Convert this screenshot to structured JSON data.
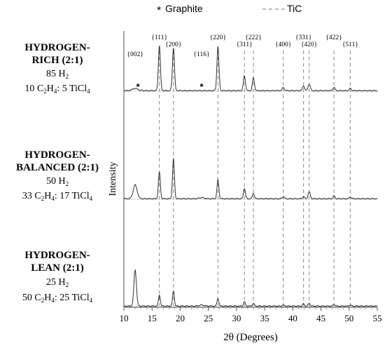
{
  "legend": {
    "graphite_marker": "*",
    "graphite_label": "Graphite",
    "tic_label": "TiC"
  },
  "samples": [
    {
      "title_line1": "HYDROGEN-",
      "title_line2": "RICH (2:1)",
      "h2_num": "85",
      "h2_text": "H",
      "h2_sub": "2",
      "ratio_a": "10 C",
      "ratio_b": "H",
      "ratio_c": ": 5 TiCl",
      "ratio_sub1": "2",
      "ratio_sub2": "4",
      "ratio_sub3": "4"
    },
    {
      "title_line1": "HYDROGEN-",
      "title_line2": "BALANCED (2:1)",
      "h2_num": "50",
      "h2_text": "H",
      "h2_sub": "2",
      "ratio_a": "33 C",
      "ratio_b": "H",
      "ratio_c": ": 17 TiCl",
      "ratio_sub1": "2",
      "ratio_sub2": "4",
      "ratio_sub3": "4"
    },
    {
      "title_line1": "HYDROGEN-",
      "title_line2": "LEAN (2:1)",
      "h2_num": "25",
      "h2_text": "H",
      "h2_sub": "2",
      "ratio_a": "50 C",
      "ratio_b": "H",
      "ratio_c": ": 25 TiCl",
      "ratio_sub1": "2",
      "ratio_sub2": "4",
      "ratio_sub3": "4"
    }
  ],
  "chart_data": {
    "type": "line",
    "xlabel": "2θ (Degrees)",
    "ylabel": "Intensity",
    "xlim": [
      10,
      55
    ],
    "x_ticks": [
      10,
      15,
      20,
      25,
      30,
      35,
      40,
      45,
      50,
      55
    ],
    "tic_reference_lines": [
      {
        "label": "{111}",
        "x": 16.3
      },
      {
        "label": "{200}",
        "x": 18.8
      },
      {
        "label": "{220}",
        "x": 26.7
      },
      {
        "label": "{311}",
        "x": 31.4
      },
      {
        "label": "{222}",
        "x": 33.0
      },
      {
        "label": "{400}",
        "x": 38.3
      },
      {
        "label": "{331}",
        "x": 41.9
      },
      {
        "label": "{420}",
        "x": 42.9
      },
      {
        "label": "{422}",
        "x": 47.3
      },
      {
        "label": "{511}",
        "x": 50.2
      }
    ],
    "graphite_labels": [
      {
        "label": "{002}",
        "x": 12.0
      },
      {
        "label": "{116}",
        "x": 23.8
      }
    ],
    "graphite_star_positions": [
      12.5,
      23.8
    ],
    "series": [
      {
        "peaks": [
          {
            "x": 12.0,
            "h": 0.04,
            "w": 0.5
          },
          {
            "x": 16.3,
            "h": 0.82,
            "w": 0.18
          },
          {
            "x": 18.8,
            "h": 0.78,
            "w": 0.18
          },
          {
            "x": 26.7,
            "h": 0.8,
            "w": 0.18
          },
          {
            "x": 31.4,
            "h": 0.27,
            "w": 0.18
          },
          {
            "x": 33.0,
            "h": 0.23,
            "w": 0.18
          },
          {
            "x": 38.3,
            "h": 0.06,
            "w": 0.18
          },
          {
            "x": 41.9,
            "h": 0.09,
            "w": 0.18
          },
          {
            "x": 42.9,
            "h": 0.12,
            "w": 0.2
          },
          {
            "x": 47.3,
            "h": 0.06,
            "w": 0.18
          },
          {
            "x": 50.2,
            "h": 0.04,
            "w": 0.18
          }
        ]
      },
      {
        "peaks": [
          {
            "x": 12.0,
            "h": 0.25,
            "w": 0.35
          },
          {
            "x": 16.3,
            "h": 0.48,
            "w": 0.17
          },
          {
            "x": 18.8,
            "h": 0.72,
            "w": 0.17
          },
          {
            "x": 23.8,
            "h": 0.02,
            "w": 0.4
          },
          {
            "x": 26.7,
            "h": 0.34,
            "w": 0.17
          },
          {
            "x": 31.4,
            "h": 0.19,
            "w": 0.17
          },
          {
            "x": 33.0,
            "h": 0.1,
            "w": 0.17
          },
          {
            "x": 38.3,
            "h": 0.04,
            "w": 0.17
          },
          {
            "x": 41.9,
            "h": 0.04,
            "w": 0.17
          },
          {
            "x": 42.9,
            "h": 0.12,
            "w": 0.2
          },
          {
            "x": 47.3,
            "h": 0.05,
            "w": 0.17
          },
          {
            "x": 50.2,
            "h": 0.03,
            "w": 0.17
          }
        ]
      },
      {
        "peaks": [
          {
            "x": 12.0,
            "h": 0.66,
            "w": 0.22
          },
          {
            "x": 16.3,
            "h": 0.2,
            "w": 0.16
          },
          {
            "x": 18.8,
            "h": 0.27,
            "w": 0.16
          },
          {
            "x": 23.8,
            "h": 0.02,
            "w": 0.4
          },
          {
            "x": 26.7,
            "h": 0.14,
            "w": 0.16
          },
          {
            "x": 31.4,
            "h": 0.08,
            "w": 0.16
          },
          {
            "x": 33.0,
            "h": 0.05,
            "w": 0.16
          },
          {
            "x": 38.3,
            "h": 0.02,
            "w": 0.16
          },
          {
            "x": 41.9,
            "h": 0.04,
            "w": 0.16
          },
          {
            "x": 42.9,
            "h": 0.05,
            "w": 0.16
          },
          {
            "x": 47.3,
            "h": 0.03,
            "w": 0.16
          },
          {
            "x": 50.2,
            "h": 0.02,
            "w": 0.16
          }
        ]
      }
    ]
  }
}
